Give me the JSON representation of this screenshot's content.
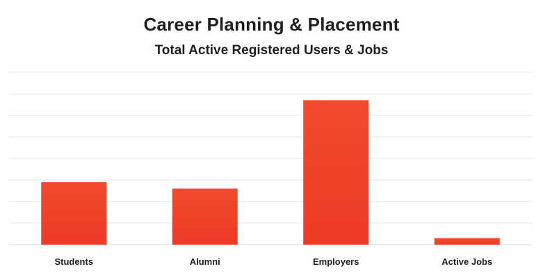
{
  "chart_data": {
    "type": "bar",
    "title": "Career Planning & Placement",
    "subtitle": "Total Active Registered Users & Jobs",
    "categories": [
      "Students",
      "Alumni",
      "Employers",
      "Active Jobs"
    ],
    "values": [
      29,
      26,
      67,
      3
    ],
    "ylim": [
      0,
      80
    ],
    "grid": true,
    "bar_color": "#ee3a26",
    "bar_color_light": "#f24a2c",
    "gridline_color": "#e6e6e6"
  }
}
